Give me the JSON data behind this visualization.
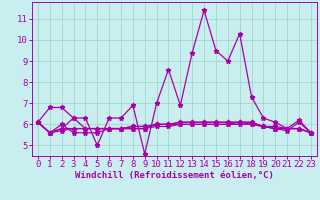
{
  "xlabel": "Windchill (Refroidissement éolien,°C)",
  "background_color": "#c8eef0",
  "grid_color": "#a0d8c8",
  "line_color": "#aa00aa",
  "x": [
    0,
    1,
    2,
    3,
    4,
    5,
    6,
    7,
    8,
    9,
    10,
    11,
    12,
    13,
    14,
    15,
    16,
    17,
    18,
    19,
    20,
    21,
    22,
    23
  ],
  "series": [
    [
      6.1,
      6.8,
      6.8,
      6.3,
      6.3,
      5.0,
      6.3,
      6.3,
      6.9,
      4.6,
      7.0,
      8.6,
      6.9,
      9.4,
      11.4,
      9.5,
      9.0,
      10.3,
      7.3,
      6.3,
      6.1,
      5.8,
      6.2,
      5.6
    ],
    [
      6.1,
      5.6,
      6.0,
      5.6,
      5.6,
      5.6,
      5.8,
      5.8,
      5.8,
      5.8,
      6.0,
      6.0,
      6.1,
      6.1,
      6.1,
      6.1,
      6.1,
      6.1,
      6.1,
      5.9,
      5.8,
      5.8,
      5.8,
      5.6
    ],
    [
      6.1,
      5.6,
      5.8,
      6.3,
      5.8,
      5.8,
      5.8,
      5.8,
      5.8,
      5.8,
      5.9,
      5.9,
      6.0,
      6.0,
      6.0,
      6.0,
      6.0,
      6.0,
      6.0,
      5.9,
      5.8,
      5.8,
      5.8,
      5.6
    ],
    [
      6.1,
      5.6,
      5.8,
      5.8,
      5.8,
      5.8,
      5.8,
      5.8,
      5.9,
      5.9,
      6.0,
      6.0,
      6.0,
      6.0,
      6.0,
      6.0,
      6.0,
      6.1,
      6.0,
      5.9,
      5.9,
      5.8,
      5.8,
      5.6
    ],
    [
      6.1,
      5.6,
      5.7,
      5.8,
      5.8,
      5.8,
      5.8,
      5.8,
      5.9,
      5.9,
      6.0,
      6.0,
      6.1,
      6.1,
      6.1,
      6.1,
      6.1,
      6.1,
      6.1,
      5.9,
      5.8,
      5.7,
      6.1,
      5.6
    ]
  ],
  "xlim": [
    -0.5,
    23.5
  ],
  "ylim": [
    4.5,
    11.8
  ],
  "yticks": [
    5,
    6,
    7,
    8,
    9,
    10,
    11
  ],
  "xticks": [
    0,
    1,
    2,
    3,
    4,
    5,
    6,
    7,
    8,
    9,
    10,
    11,
    12,
    13,
    14,
    15,
    16,
    17,
    18,
    19,
    20,
    21,
    22,
    23
  ],
  "xlabel_fontsize": 6.5,
  "tick_fontsize": 6.5,
  "linewidth": 0.9,
  "markersize": 3.5
}
